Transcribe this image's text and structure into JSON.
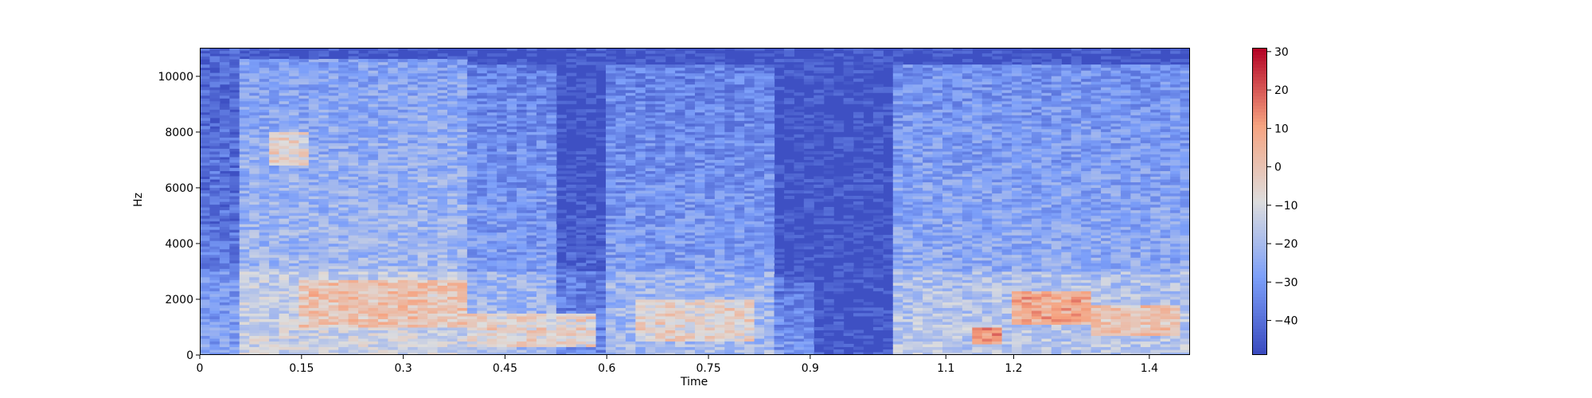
{
  "chart_data": {
    "type": "heatmap",
    "title": "",
    "xlabel": "Time",
    "ylabel": "Hz",
    "x_ticks": [
      0,
      0.15,
      0.3,
      0.45,
      0.6,
      0.75,
      0.9,
      1.1,
      1.2,
      1.4
    ],
    "x_tick_labels": [
      "0",
      "0.15",
      "0.3",
      "0.45",
      "0.6",
      "0.75",
      "0.9",
      "1.1",
      "1.2",
      "1.4"
    ],
    "xlim": [
      0,
      1.46
    ],
    "y_ticks": [
      0,
      2000,
      4000,
      6000,
      8000,
      10000
    ],
    "y_tick_labels": [
      "0",
      "2000",
      "4000",
      "6000",
      "8000",
      "10000"
    ],
    "ylim": [
      0,
      11025
    ],
    "colorbar": {
      "range": [
        -49,
        31
      ],
      "ticks": [
        30,
        20,
        10,
        0,
        -10,
        -20,
        -30,
        -40
      ],
      "tick_labels": [
        "30",
        "20",
        "10",
        "0",
        "−10",
        "−20",
        "−30",
        "−40"
      ],
      "colormap": "coolwarm"
    },
    "segments": [
      {
        "t_start": 0.0,
        "t_end": 0.06,
        "level_db": -34,
        "max_freq": 11025
      },
      {
        "t_start": 0.06,
        "t_end": 0.4,
        "level_db": -18,
        "max_freq": 10600
      },
      {
        "t_start": 0.4,
        "t_end": 0.53,
        "level_db": -26,
        "max_freq": 10400
      },
      {
        "t_start": 0.53,
        "t_end": 0.6,
        "level_db": -40,
        "max_freq": 8000
      },
      {
        "t_start": 0.6,
        "t_end": 0.84,
        "level_db": -26,
        "max_freq": 10400
      },
      {
        "t_start": 0.84,
        "t_end": 0.9,
        "level_db": -36,
        "max_freq": 2800
      },
      {
        "t_start": 0.9,
        "t_end": 1.02,
        "level_db": -48,
        "max_freq": 300
      },
      {
        "t_start": 1.02,
        "t_end": 1.46,
        "level_db": -22,
        "max_freq": 10400
      }
    ],
    "hot_spots": [
      {
        "t_start": 0.14,
        "t_end": 0.4,
        "f_low": 1000,
        "f_high": 2700,
        "level_db": 2
      },
      {
        "t_start": 0.1,
        "t_end": 0.16,
        "f_low": 6800,
        "f_high": 8000,
        "level_db": -4
      },
      {
        "t_start": 0.4,
        "t_end": 0.58,
        "f_low": 300,
        "f_high": 1500,
        "level_db": -4
      },
      {
        "t_start": 0.64,
        "t_end": 0.82,
        "f_low": 500,
        "f_high": 2000,
        "level_db": -4
      },
      {
        "t_start": 1.14,
        "t_end": 1.18,
        "f_low": 400,
        "f_high": 1000,
        "level_db": 12
      },
      {
        "t_start": 1.2,
        "t_end": 1.32,
        "f_low": 1100,
        "f_high": 2300,
        "level_db": 10
      },
      {
        "t_start": 1.32,
        "t_end": 1.44,
        "f_low": 700,
        "f_high": 1800,
        "level_db": 2
      }
    ]
  }
}
